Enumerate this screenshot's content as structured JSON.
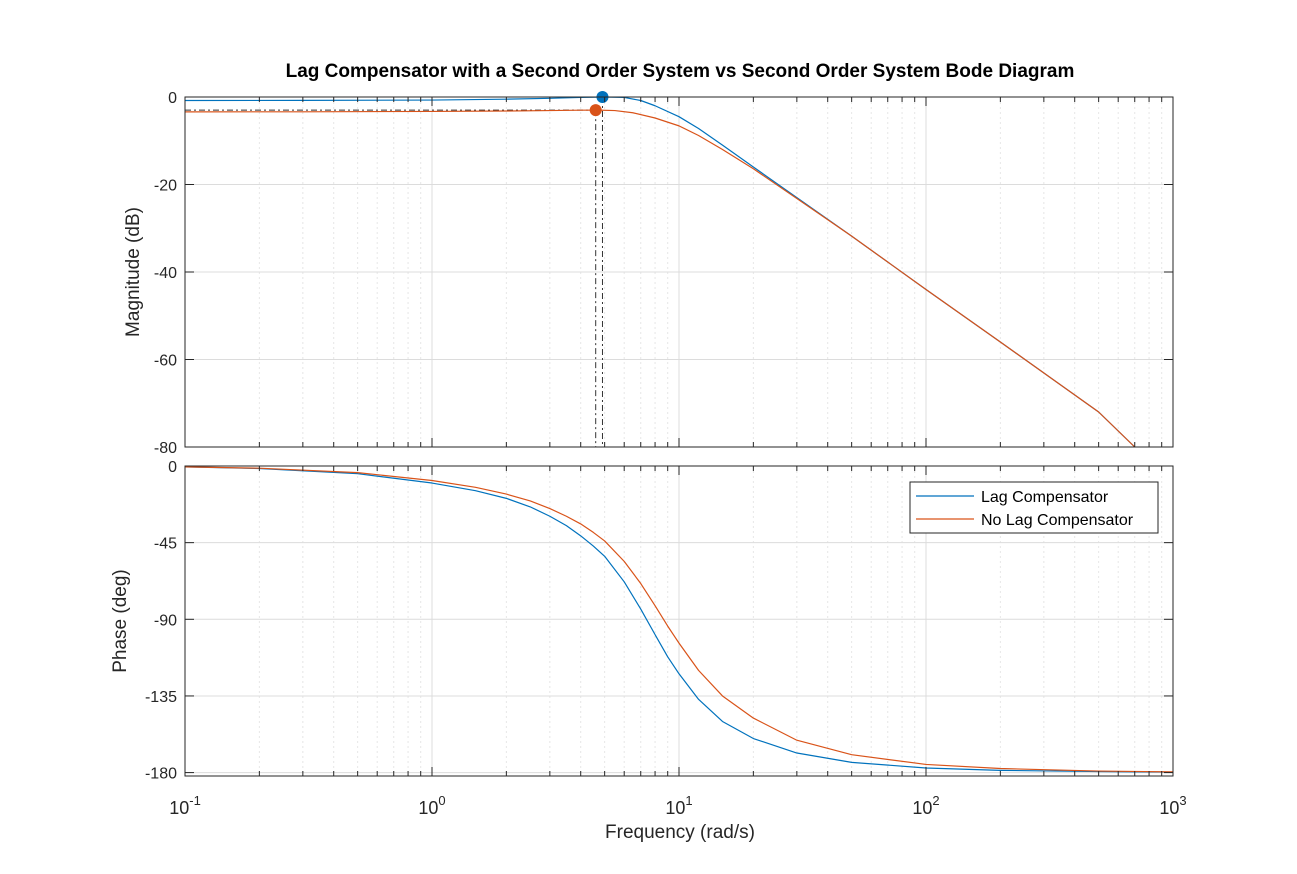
{
  "chart_data": {
    "type": "line",
    "title": "Lag Compensator with a Second Order System vs Second Order System Bode Diagram",
    "xlabel": "Frequency  (rad/s)",
    "xscale": "log",
    "xlim": [
      0.1,
      1000
    ],
    "x_tick_labels": [
      {
        "base": "10",
        "exp": "-1",
        "value": 0.1
      },
      {
        "base": "10",
        "exp": "0",
        "value": 1
      },
      {
        "base": "10",
        "exp": "1",
        "value": 10
      },
      {
        "base": "10",
        "exp": "2",
        "value": 100
      },
      {
        "base": "10",
        "exp": "3",
        "value": 1000
      }
    ],
    "grid": true,
    "colors": {
      "lag": "#0072BD",
      "nolag": "#D95319",
      "axis": "#262626",
      "grid": "#d9d9d9"
    },
    "panels": [
      {
        "name": "magnitude",
        "ylabel": "Magnitude (dB)",
        "ylim": [
          -80,
          0
        ],
        "y_ticks": [
          0,
          -20,
          -40,
          -60,
          -80
        ],
        "y_tick_labels": [
          "0",
          "-20",
          "-40",
          "-60",
          "-80"
        ],
        "series": [
          {
            "name": "Lag Compensator",
            "color": "#0072BD",
            "x": [
              0.1,
              0.3,
              1,
              2,
              3,
              4,
              5,
              6,
              7,
              8,
              10,
              12,
              15,
              20,
              30,
              50,
              100,
              200,
              500,
              700
            ],
            "y": [
              -0.8,
              -0.78,
              -0.7,
              -0.5,
              -0.3,
              -0.1,
              0.0,
              -0.1,
              -0.8,
              -2.0,
              -4.5,
              -7.2,
              -11.0,
              -16.0,
              -23.0,
              -31.8,
              -44.0,
              -56.0,
              -72.0,
              -80.0
            ]
          },
          {
            "name": "No Lag Compensator",
            "color": "#D95319",
            "x": [
              0.1,
              0.3,
              1,
              2,
              3,
              4,
              4.7,
              5.5,
              6.5,
              8,
              10,
              12,
              15,
              20,
              30,
              50,
              100,
              200,
              500,
              700
            ],
            "y": [
              -3.4,
              -3.38,
              -3.3,
              -3.2,
              -3.1,
              -3.02,
              -3.0,
              -3.1,
              -3.6,
              -4.8,
              -6.6,
              -8.8,
              -12.0,
              -16.4,
              -23.2,
              -31.8,
              -44.0,
              -56.0,
              -72.0,
              -80.0
            ]
          }
        ],
        "markers": [
          {
            "series": "Lag Compensator",
            "x": 4.9,
            "y": 0.0
          },
          {
            "series": "No Lag Compensator",
            "x": 4.6,
            "y": -3.0
          }
        ]
      },
      {
        "name": "phase",
        "ylabel": "Phase (deg)",
        "ylim": [
          -182,
          0
        ],
        "y_ticks": [
          0,
          -45,
          -90,
          -135,
          -180
        ],
        "y_tick_labels": [
          "0",
          "-45",
          "-90",
          "-135",
          "-180"
        ],
        "series": [
          {
            "name": "Lag Compensator",
            "color": "#0072BD",
            "x": [
              0.1,
              0.2,
              0.5,
              1,
              1.5,
              2,
              2.5,
              3,
              3.5,
              4,
              4.5,
              5,
              6,
              7,
              8,
              9,
              10,
              12,
              15,
              20,
              30,
              50,
              100,
              200,
              500,
              1000
            ],
            "y": [
              -0.5,
              -1.5,
              -4.5,
              -10,
              -14.5,
              -19,
              -24,
              -29.5,
              -35,
              -41,
              -47,
              -53,
              -68,
              -84,
              -99,
              -112,
              -122,
              -137,
              -150,
              -160,
              -168.5,
              -174,
              -177.3,
              -178.7,
              -179.4,
              -179.7
            ]
          },
          {
            "name": "No Lag Compensator",
            "color": "#D95319",
            "x": [
              0.1,
              0.2,
              0.5,
              1,
              1.5,
              2,
              2.5,
              3,
              3.5,
              4,
              4.5,
              5,
              6,
              7,
              8,
              9,
              10,
              12,
              15,
              20,
              30,
              50,
              100,
              200,
              500,
              1000
            ],
            "y": [
              -0.5,
              -1.3,
              -3.9,
              -8.5,
              -12.5,
              -16.5,
              -20.5,
              -25,
              -29.5,
              -34,
              -39,
              -44,
              -56,
              -69,
              -82,
              -94,
              -104,
              -120,
              -135,
              -148,
              -161,
              -169.5,
              -175.2,
              -177.6,
              -179.1,
              -179.6
            ]
          }
        ],
        "markers": []
      }
    ],
    "legend": {
      "location": "top-right of phase panel",
      "entries": [
        "Lag Compensator",
        "No Lag Compensator"
      ]
    }
  }
}
